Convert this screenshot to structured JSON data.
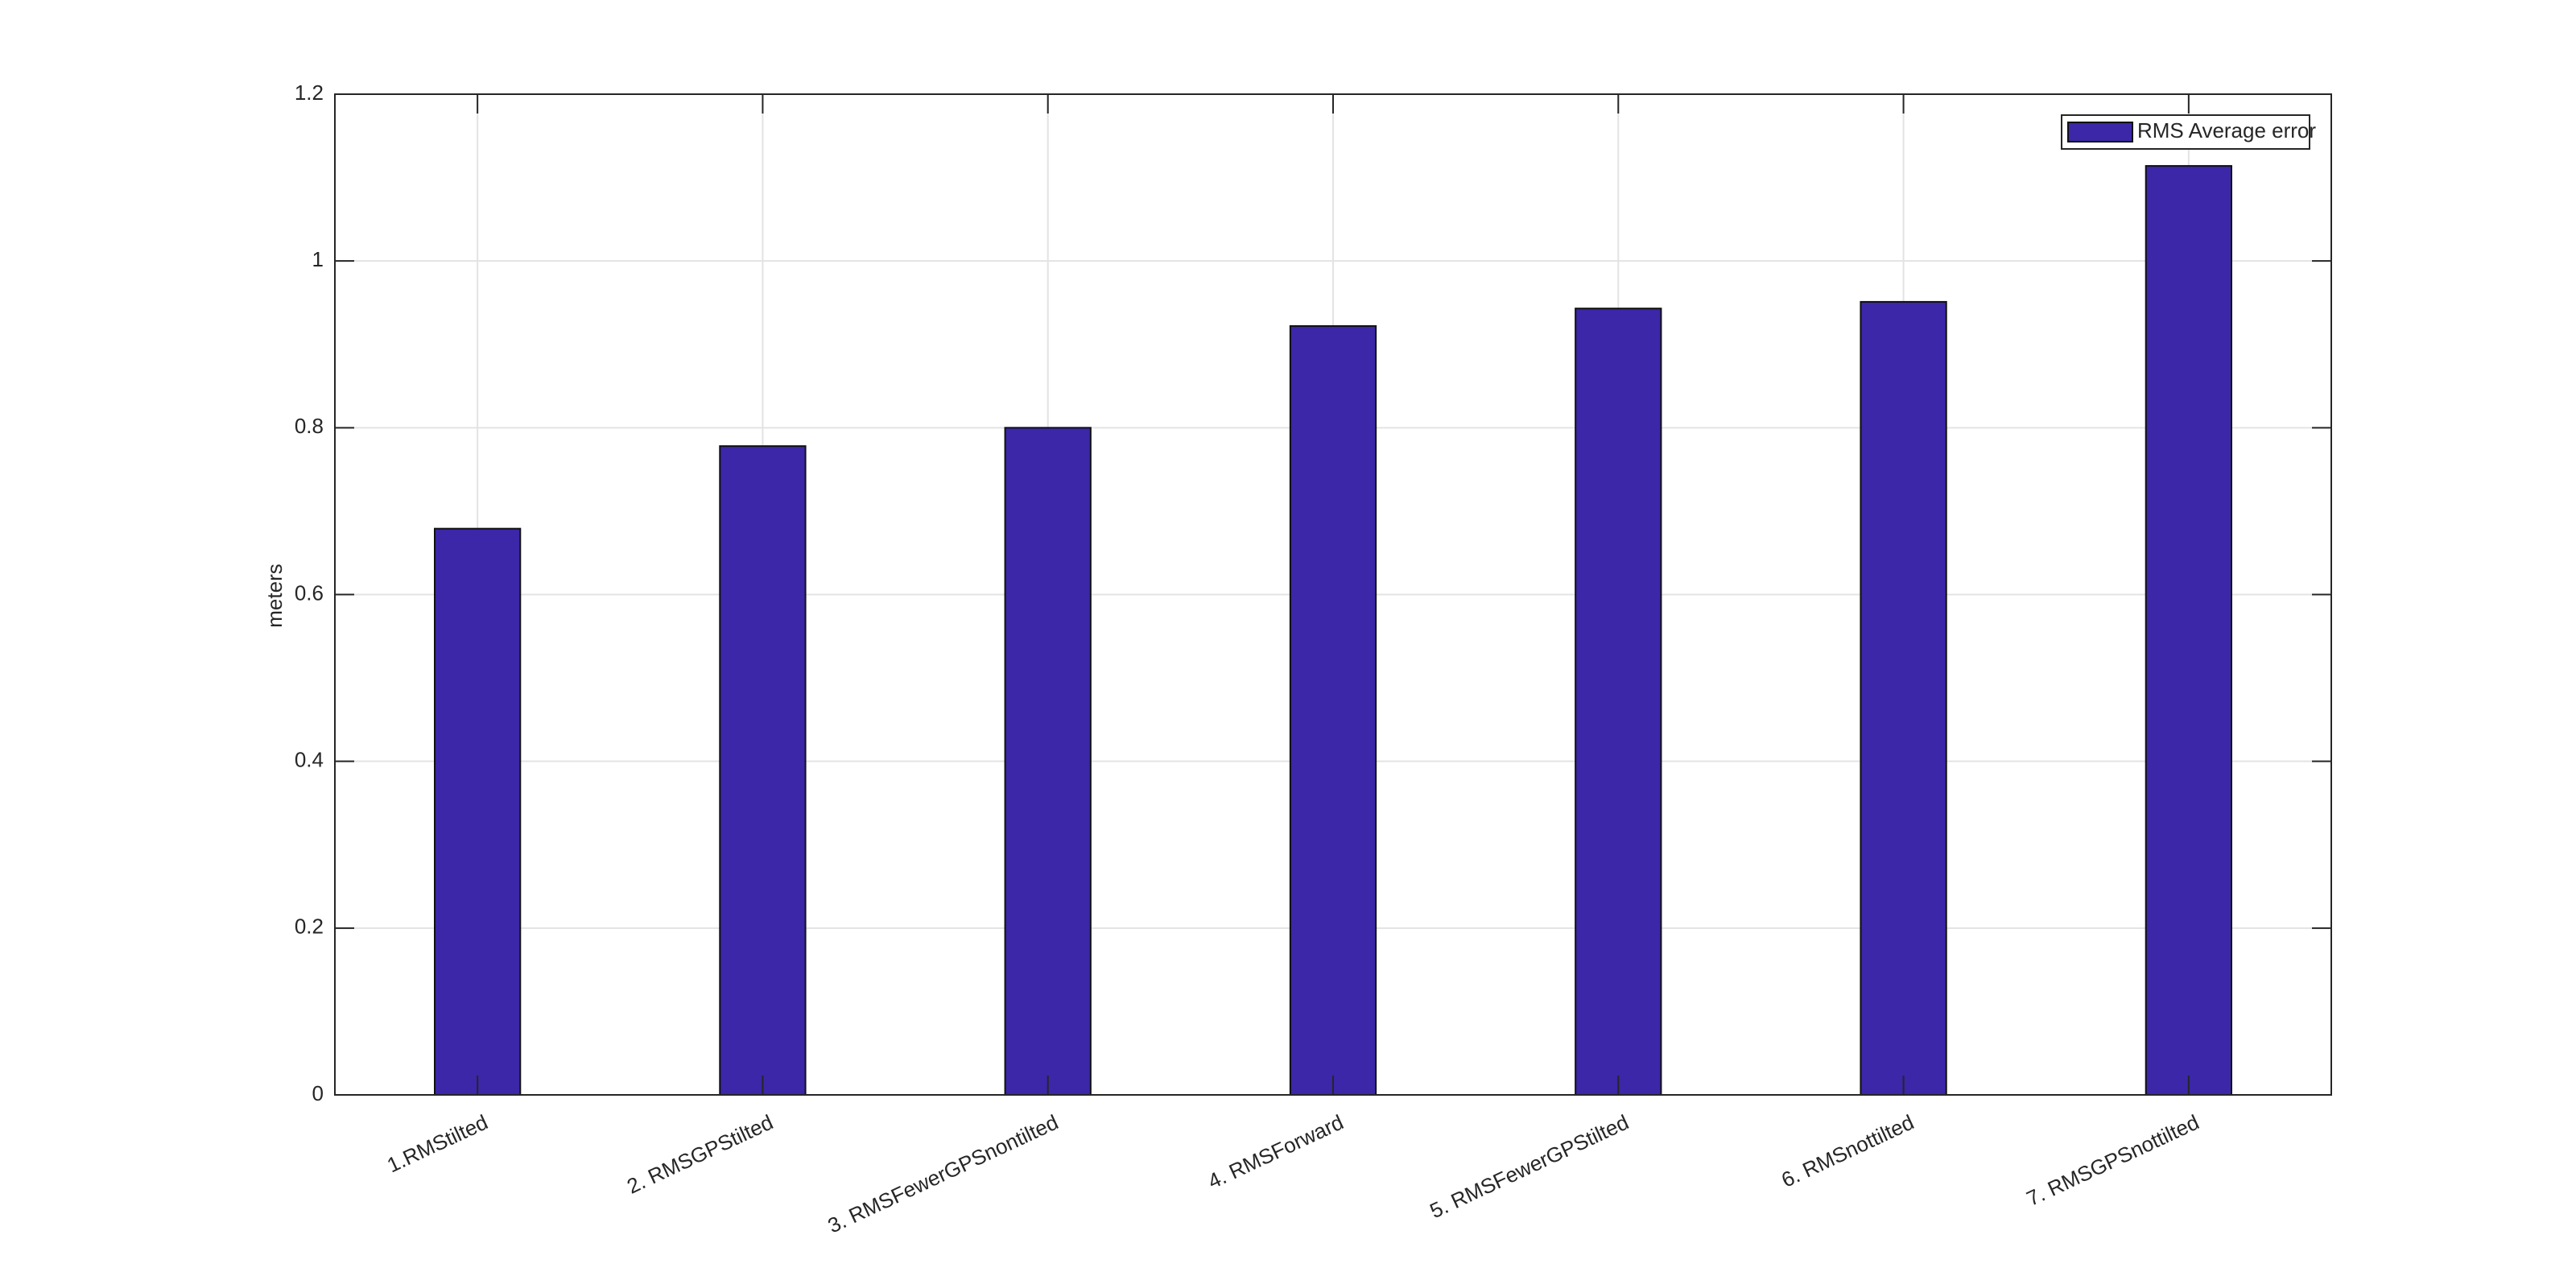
{
  "chart_data": {
    "type": "bar",
    "y_label": "meters",
    "categories": [
      "1.RMStilted",
      "2. RMSGPStilted",
      "3. RMSFewerGPSnontilted",
      "4. RMSForward",
      "5. RMSFewerGPStilted",
      "6. RMSnottilted",
      "7. RMSGPSnottilted"
    ],
    "series": [
      {
        "name": "RMS Average error",
        "color": "#3b27a8",
        "values": [
          0.679,
          0.778,
          0.8,
          0.922,
          0.943,
          0.951,
          1.114
        ]
      }
    ],
    "ylim": [
      0,
      1.2
    ],
    "yticks": [
      0,
      0.2,
      0.4,
      0.6,
      0.8,
      1,
      1.2
    ],
    "grid": true,
    "legend": "upper right"
  }
}
